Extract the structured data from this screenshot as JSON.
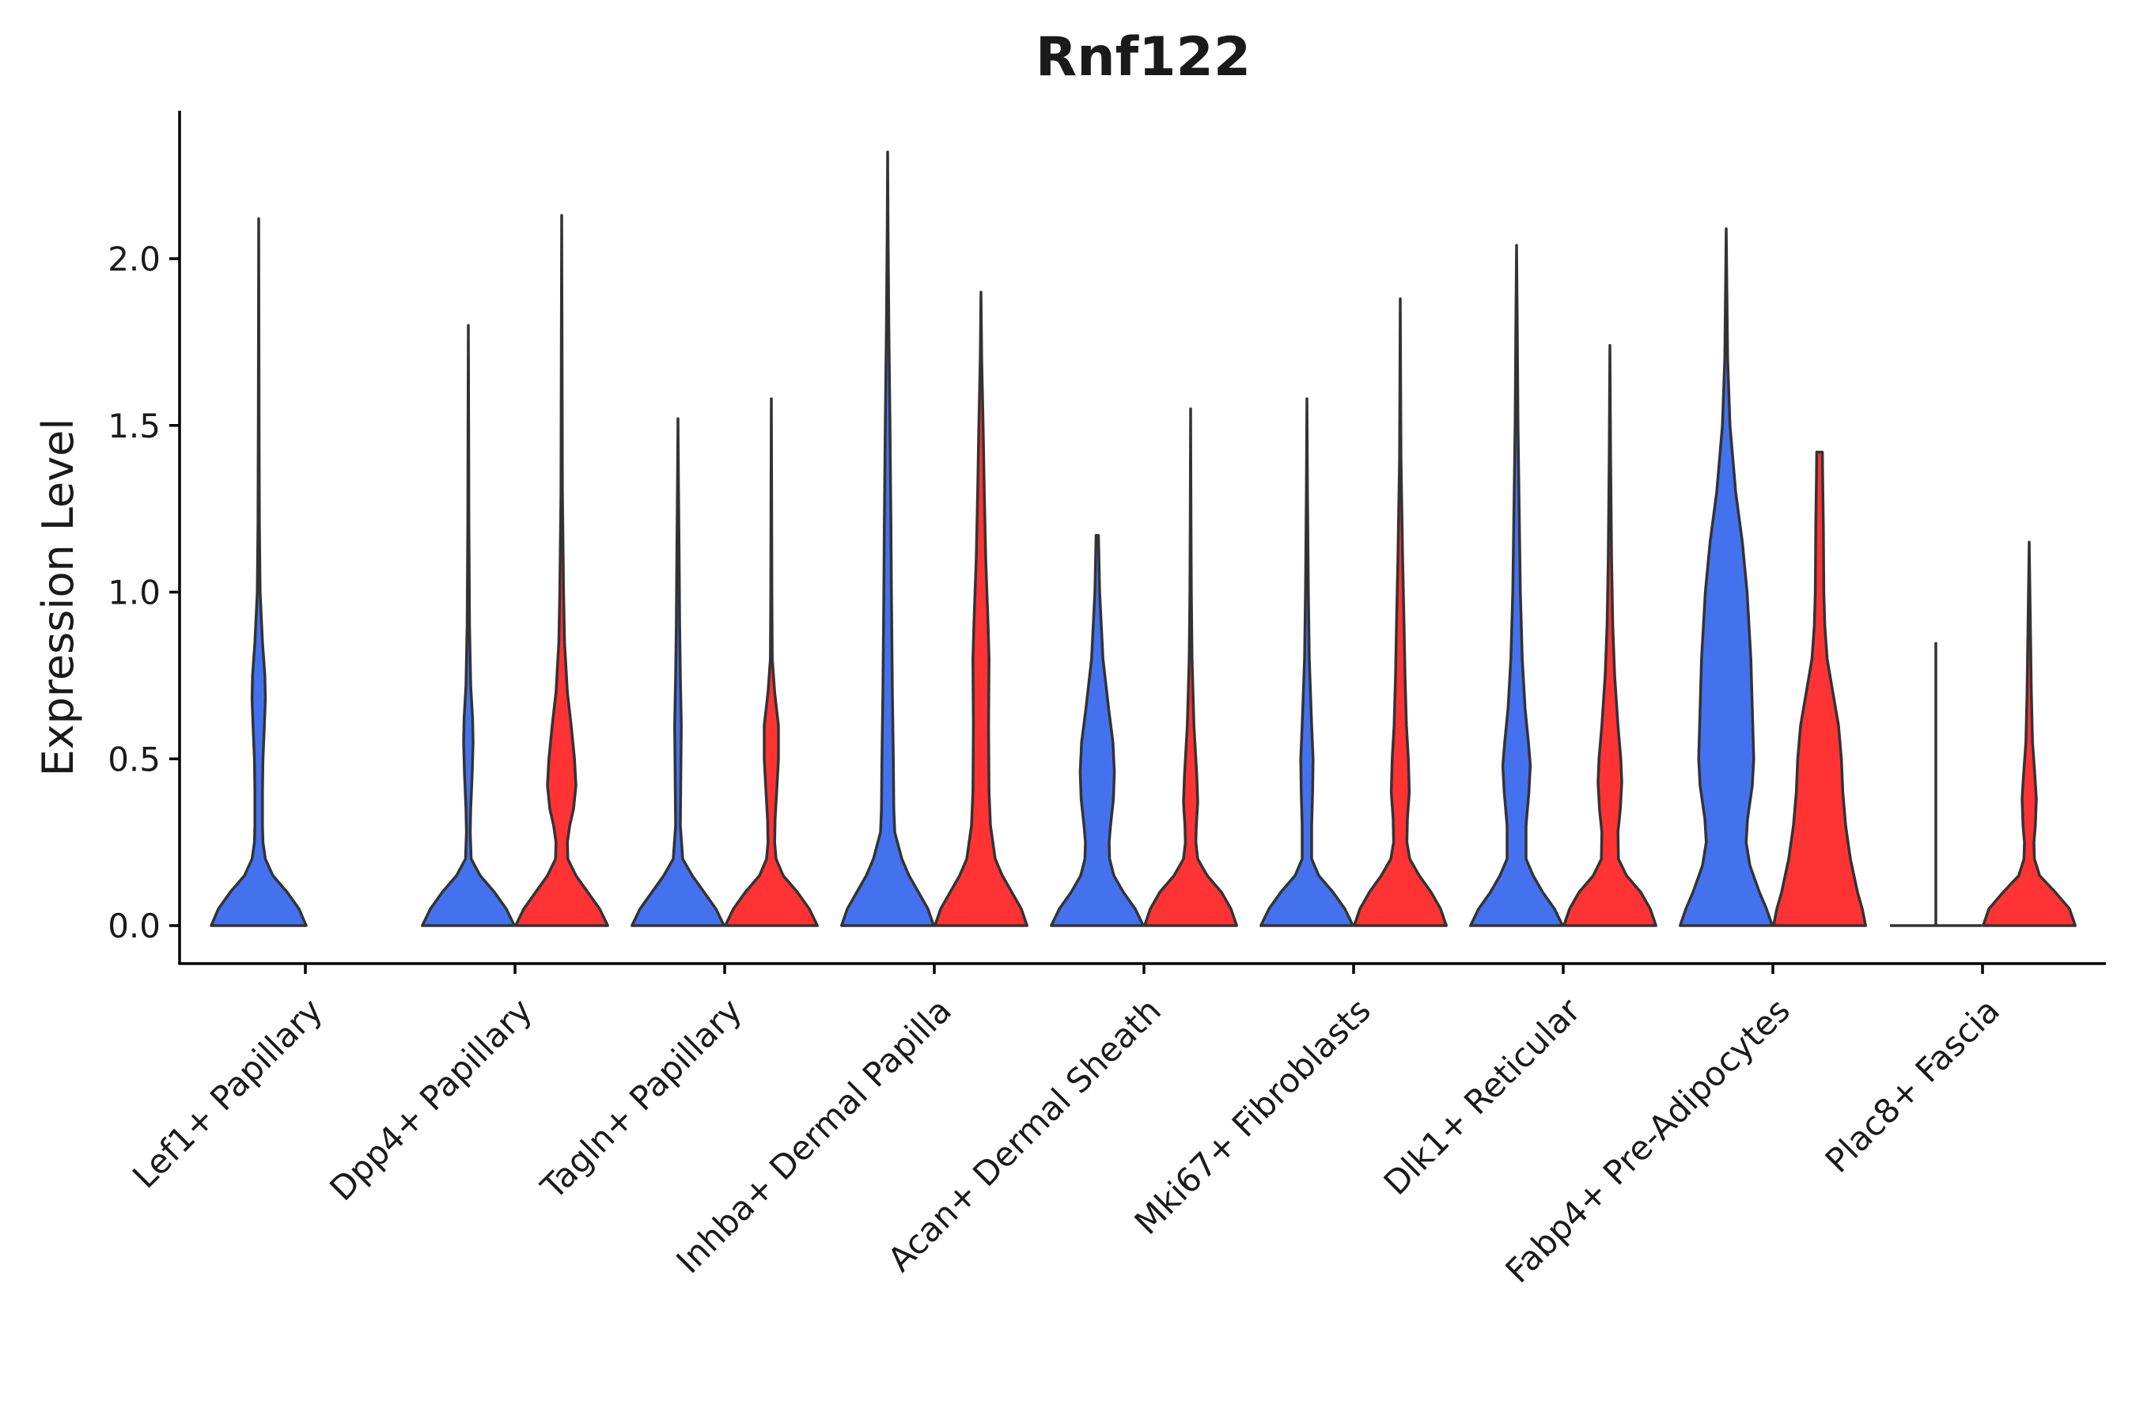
{
  "chart_data": {
    "type": "violin",
    "title": "Rnf122",
    "xlabel": "",
    "ylabel": "Expression Level",
    "ylim": [
      -0.12,
      2.45
    ],
    "yticks": [
      "0.0",
      "0.5",
      "1.0",
      "1.5",
      "2.0"
    ],
    "grid": false,
    "categories": [
      "Lef1+ Papillary",
      "Dpp4+ Papillary",
      "Tagln+ Papillary",
      "Inhba+ Dermal Papilla",
      "Acan+ Dermal Sheath",
      "Mki67+ Fibroblasts",
      "Dlk1+ Reticular",
      "Fabp4+ Pre-Adipocytes",
      "Plac8+ Fascia"
    ],
    "colors": {
      "group1": "#4472EE",
      "group2": "#FF3333"
    },
    "violins": [
      {
        "category": "Lef1+ Papillary",
        "group": 1,
        "color": "#4472EE",
        "max": 2.12,
        "profile": [
          [
            0,
            1.0
          ],
          [
            0.05,
            0.85
          ],
          [
            0.1,
            0.6
          ],
          [
            0.15,
            0.3
          ],
          [
            0.2,
            0.14
          ],
          [
            0.25,
            0.09
          ],
          [
            0.3,
            0.08
          ],
          [
            0.4,
            0.08
          ],
          [
            0.5,
            0.09
          ],
          [
            0.6,
            0.12
          ],
          [
            0.68,
            0.14
          ],
          [
            0.75,
            0.13
          ],
          [
            0.85,
            0.08
          ],
          [
            1.0,
            0.03
          ],
          [
            1.2,
            0.015
          ],
          [
            1.5,
            0.008
          ],
          [
            2.12,
            0.0
          ]
        ]
      },
      {
        "category": "Dpp4+ Papillary",
        "group": 1,
        "color": "#4472EE",
        "max": 1.8,
        "profile": [
          [
            0,
            0.97
          ],
          [
            0.05,
            0.8
          ],
          [
            0.1,
            0.55
          ],
          [
            0.15,
            0.25
          ],
          [
            0.2,
            0.06
          ],
          [
            0.28,
            0.04
          ],
          [
            0.35,
            0.05
          ],
          [
            0.45,
            0.08
          ],
          [
            0.55,
            0.1
          ],
          [
            0.62,
            0.09
          ],
          [
            0.72,
            0.05
          ],
          [
            0.9,
            0.025
          ],
          [
            1.2,
            0.012
          ],
          [
            1.5,
            0.006
          ],
          [
            1.8,
            0.0
          ]
        ]
      },
      {
        "category": "Dpp4+ Papillary",
        "group": 2,
        "color": "#FF3333",
        "max": 2.13,
        "profile": [
          [
            0,
            0.97
          ],
          [
            0.05,
            0.8
          ],
          [
            0.1,
            0.55
          ],
          [
            0.15,
            0.3
          ],
          [
            0.2,
            0.13
          ],
          [
            0.25,
            0.12
          ],
          [
            0.3,
            0.17
          ],
          [
            0.35,
            0.25
          ],
          [
            0.42,
            0.3
          ],
          [
            0.5,
            0.27
          ],
          [
            0.6,
            0.2
          ],
          [
            0.7,
            0.12
          ],
          [
            0.85,
            0.06
          ],
          [
            1.0,
            0.04
          ],
          [
            1.3,
            0.015
          ],
          [
            1.7,
            0.008
          ],
          [
            2.13,
            0.0
          ]
        ]
      },
      {
        "category": "Tagln+ Papillary",
        "group": 1,
        "color": "#4472EE",
        "max": 1.52,
        "profile": [
          [
            0,
            0.97
          ],
          [
            0.05,
            0.8
          ],
          [
            0.1,
            0.55
          ],
          [
            0.15,
            0.3
          ],
          [
            0.2,
            0.1
          ],
          [
            0.3,
            0.05
          ],
          [
            0.45,
            0.06
          ],
          [
            0.6,
            0.07
          ],
          [
            0.75,
            0.05
          ],
          [
            0.9,
            0.035
          ],
          [
            1.1,
            0.025
          ],
          [
            1.3,
            0.012
          ],
          [
            1.52,
            0.0
          ]
        ]
      },
      {
        "category": "Tagln+ Papillary",
        "group": 2,
        "color": "#FF3333",
        "max": 1.58,
        "profile": [
          [
            0,
            0.97
          ],
          [
            0.05,
            0.8
          ],
          [
            0.1,
            0.55
          ],
          [
            0.15,
            0.25
          ],
          [
            0.2,
            0.1
          ],
          [
            0.25,
            0.07
          ],
          [
            0.32,
            0.08
          ],
          [
            0.42,
            0.12
          ],
          [
            0.5,
            0.15
          ],
          [
            0.6,
            0.15
          ],
          [
            0.7,
            0.07
          ],
          [
            0.8,
            0.02
          ],
          [
            1.0,
            0.012
          ],
          [
            1.3,
            0.007
          ],
          [
            1.58,
            0.0
          ]
        ]
      },
      {
        "category": "Inhba+ Dermal Papilla",
        "group": 1,
        "color": "#4472EE",
        "max": 2.32,
        "profile": [
          [
            0,
            0.97
          ],
          [
            0.05,
            0.85
          ],
          [
            0.1,
            0.65
          ],
          [
            0.15,
            0.45
          ],
          [
            0.2,
            0.3
          ],
          [
            0.28,
            0.15
          ],
          [
            0.35,
            0.13
          ],
          [
            0.5,
            0.12
          ],
          [
            0.7,
            0.1
          ],
          [
            0.85,
            0.09
          ],
          [
            1.0,
            0.08
          ],
          [
            1.2,
            0.07
          ],
          [
            1.5,
            0.05
          ],
          [
            1.8,
            0.025
          ],
          [
            2.1,
            0.008
          ],
          [
            2.32,
            0.0
          ]
        ]
      },
      {
        "category": "Inhba+ Dermal Papilla",
        "group": 2,
        "color": "#FF3333",
        "max": 1.9,
        "profile": [
          [
            0,
            0.97
          ],
          [
            0.05,
            0.85
          ],
          [
            0.1,
            0.65
          ],
          [
            0.15,
            0.45
          ],
          [
            0.2,
            0.3
          ],
          [
            0.3,
            0.2
          ],
          [
            0.4,
            0.17
          ],
          [
            0.6,
            0.16
          ],
          [
            0.8,
            0.17
          ],
          [
            0.9,
            0.15
          ],
          [
            1.1,
            0.1
          ],
          [
            1.3,
            0.07
          ],
          [
            1.5,
            0.045
          ],
          [
            1.7,
            0.015
          ],
          [
            1.9,
            0.0
          ]
        ]
      },
      {
        "category": "Acan+ Dermal Sheath",
        "group": 1,
        "color": "#4472EE",
        "max": 1.17,
        "profile": [
          [
            0,
            0.97
          ],
          [
            0.05,
            0.8
          ],
          [
            0.1,
            0.55
          ],
          [
            0.15,
            0.35
          ],
          [
            0.2,
            0.26
          ],
          [
            0.25,
            0.25
          ],
          [
            0.3,
            0.28
          ],
          [
            0.38,
            0.34
          ],
          [
            0.46,
            0.36
          ],
          [
            0.55,
            0.33
          ],
          [
            0.65,
            0.24
          ],
          [
            0.8,
            0.12
          ],
          [
            1.0,
            0.05
          ],
          [
            1.17,
            0.025
          ]
        ]
      },
      {
        "category": "Acan+ Dermal Sheath",
        "group": 2,
        "color": "#FF3333",
        "max": 1.55,
        "profile": [
          [
            0,
            0.97
          ],
          [
            0.05,
            0.85
          ],
          [
            0.1,
            0.65
          ],
          [
            0.15,
            0.35
          ],
          [
            0.2,
            0.15
          ],
          [
            0.25,
            0.11
          ],
          [
            0.3,
            0.12
          ],
          [
            0.37,
            0.15
          ],
          [
            0.45,
            0.13
          ],
          [
            0.6,
            0.07
          ],
          [
            0.8,
            0.03
          ],
          [
            1.0,
            0.015
          ],
          [
            1.2,
            0.008
          ],
          [
            1.55,
            0.0
          ]
        ]
      },
      {
        "category": "Mki67+ Fibroblasts",
        "group": 1,
        "color": "#4472EE",
        "max": 1.58,
        "profile": [
          [
            0,
            0.97
          ],
          [
            0.05,
            0.8
          ],
          [
            0.1,
            0.55
          ],
          [
            0.15,
            0.25
          ],
          [
            0.2,
            0.1
          ],
          [
            0.3,
            0.1
          ],
          [
            0.4,
            0.12
          ],
          [
            0.5,
            0.13
          ],
          [
            0.6,
            0.1
          ],
          [
            0.8,
            0.05
          ],
          [
            1.0,
            0.03
          ],
          [
            1.3,
            0.012
          ],
          [
            1.58,
            0.0
          ]
        ]
      },
      {
        "category": "Mki67+ Fibroblasts",
        "group": 2,
        "color": "#FF3333",
        "max": 1.88,
        "profile": [
          [
            0,
            0.97
          ],
          [
            0.05,
            0.85
          ],
          [
            0.1,
            0.65
          ],
          [
            0.15,
            0.4
          ],
          [
            0.2,
            0.2
          ],
          [
            0.25,
            0.14
          ],
          [
            0.32,
            0.15
          ],
          [
            0.4,
            0.19
          ],
          [
            0.5,
            0.17
          ],
          [
            0.6,
            0.13
          ],
          [
            0.75,
            0.1
          ],
          [
            0.9,
            0.08
          ],
          [
            1.1,
            0.05
          ],
          [
            1.4,
            0.015
          ],
          [
            1.88,
            0.0
          ]
        ]
      },
      {
        "category": "Dlk1+ Reticular",
        "group": 1,
        "color": "#4472EE",
        "max": 2.04,
        "profile": [
          [
            0,
            0.97
          ],
          [
            0.05,
            0.8
          ],
          [
            0.1,
            0.55
          ],
          [
            0.15,
            0.35
          ],
          [
            0.2,
            0.2
          ],
          [
            0.3,
            0.2
          ],
          [
            0.4,
            0.26
          ],
          [
            0.48,
            0.29
          ],
          [
            0.55,
            0.25
          ],
          [
            0.65,
            0.18
          ],
          [
            0.8,
            0.12
          ],
          [
            1.0,
            0.08
          ],
          [
            1.2,
            0.06
          ],
          [
            1.5,
            0.03
          ],
          [
            1.8,
            0.015
          ],
          [
            2.04,
            0.0
          ]
        ]
      },
      {
        "category": "Dlk1+ Reticular",
        "group": 2,
        "color": "#FF3333",
        "max": 1.74,
        "profile": [
          [
            0,
            0.97
          ],
          [
            0.05,
            0.85
          ],
          [
            0.1,
            0.65
          ],
          [
            0.15,
            0.35
          ],
          [
            0.2,
            0.18
          ],
          [
            0.28,
            0.17
          ],
          [
            0.35,
            0.22
          ],
          [
            0.43,
            0.25
          ],
          [
            0.5,
            0.23
          ],
          [
            0.6,
            0.17
          ],
          [
            0.75,
            0.1
          ],
          [
            0.9,
            0.06
          ],
          [
            1.1,
            0.035
          ],
          [
            1.4,
            0.015
          ],
          [
            1.74,
            0.0
          ]
        ]
      },
      {
        "category": "Fabp4+ Pre-Adipocytes",
        "group": 1,
        "color": "#4472EE",
        "max": 2.09,
        "profile": [
          [
            0,
            0.97
          ],
          [
            0.05,
            0.85
          ],
          [
            0.1,
            0.7
          ],
          [
            0.18,
            0.5
          ],
          [
            0.25,
            0.42
          ],
          [
            0.32,
            0.45
          ],
          [
            0.42,
            0.55
          ],
          [
            0.5,
            0.58
          ],
          [
            0.65,
            0.55
          ],
          [
            0.8,
            0.52
          ],
          [
            1.0,
            0.44
          ],
          [
            1.15,
            0.34
          ],
          [
            1.3,
            0.2
          ],
          [
            1.5,
            0.08
          ],
          [
            1.7,
            0.03
          ],
          [
            2.09,
            0.0
          ]
        ]
      },
      {
        "category": "Fabp4+ Pre-Adipocytes",
        "group": 2,
        "color": "#FF3333",
        "max": 1.42,
        "profile": [
          [
            0,
            0.97
          ],
          [
            0.05,
            0.9
          ],
          [
            0.1,
            0.8
          ],
          [
            0.2,
            0.65
          ],
          [
            0.3,
            0.55
          ],
          [
            0.4,
            0.49
          ],
          [
            0.5,
            0.46
          ],
          [
            0.6,
            0.4
          ],
          [
            0.7,
            0.28
          ],
          [
            0.8,
            0.16
          ],
          [
            0.9,
            0.11
          ],
          [
            1.0,
            0.09
          ],
          [
            1.2,
            0.08
          ],
          [
            1.35,
            0.065
          ],
          [
            1.42,
            0.06
          ]
        ]
      },
      {
        "category": "Plac8+ Fascia",
        "group": 1,
        "color": "#4472EE",
        "max": 0.85,
        "profile": [
          [
            0,
            0.0
          ]
        ]
      },
      {
        "category": "Plac8+ Fascia",
        "group": 2,
        "color": "#FF3333",
        "max": 1.15,
        "profile": [
          [
            0,
            0.97
          ],
          [
            0.05,
            0.85
          ],
          [
            0.1,
            0.55
          ],
          [
            0.15,
            0.22
          ],
          [
            0.2,
            0.11
          ],
          [
            0.25,
            0.1
          ],
          [
            0.3,
            0.13
          ],
          [
            0.38,
            0.15
          ],
          [
            0.45,
            0.12
          ],
          [
            0.55,
            0.07
          ],
          [
            0.7,
            0.045
          ],
          [
            0.9,
            0.025
          ],
          [
            1.15,
            0.0
          ]
        ]
      }
    ]
  }
}
